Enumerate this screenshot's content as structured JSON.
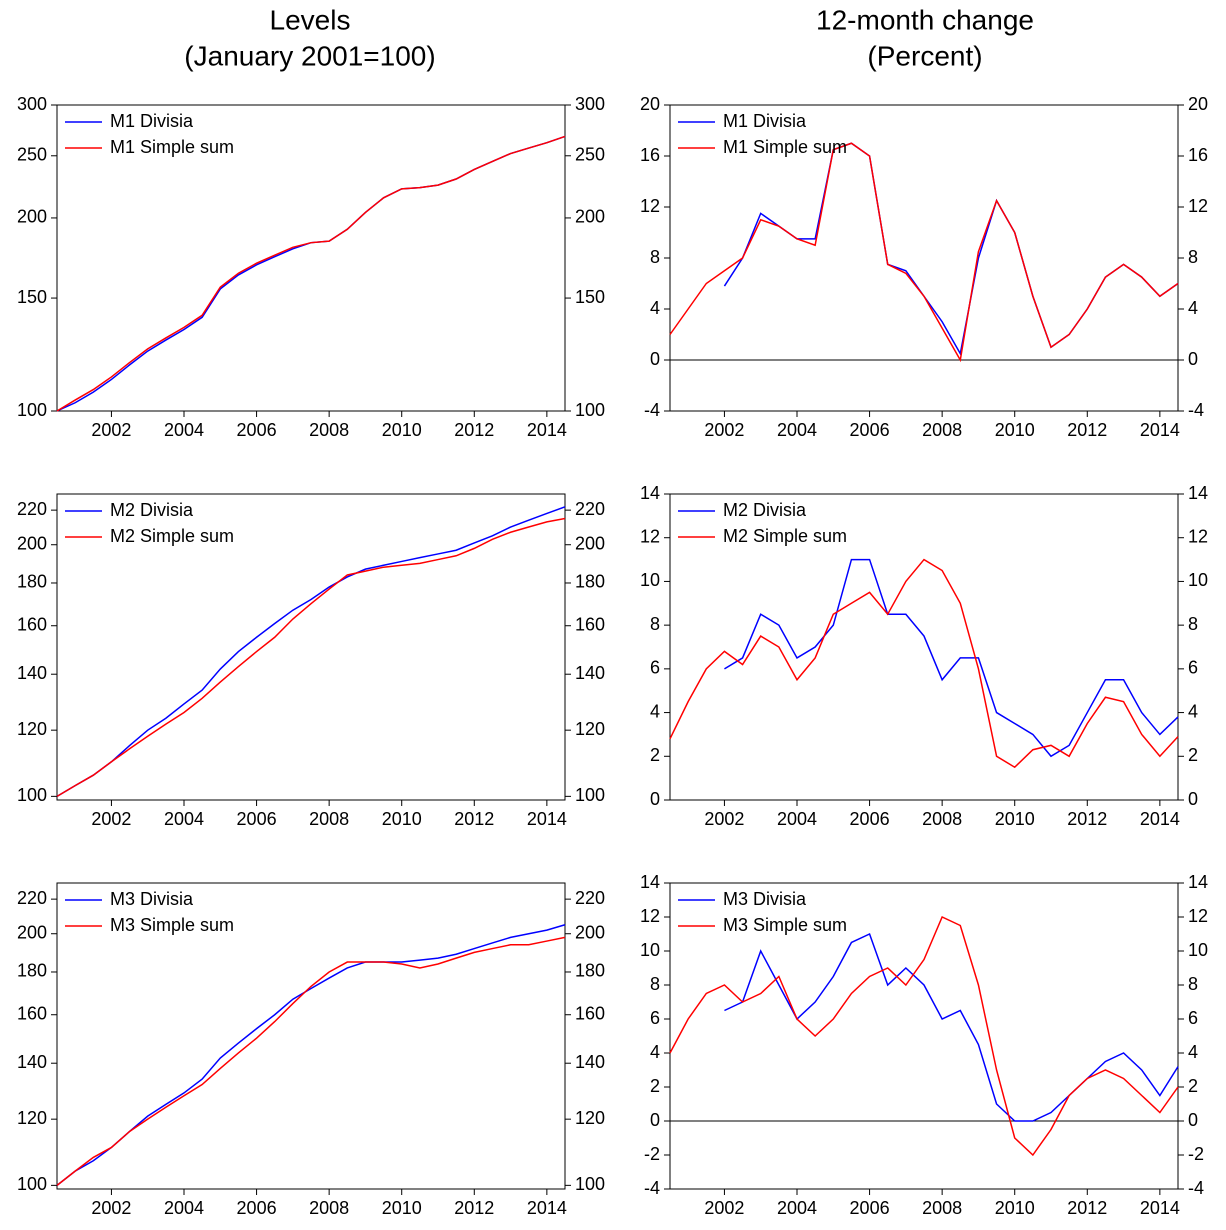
{
  "column_titles": [
    [
      "Levels",
      "(January 2001=100)"
    ],
    [
      "12-month change",
      "(Percent)"
    ]
  ],
  "chart_data": [
    {
      "type": "line",
      "yscale": "log",
      "legend": "upper left",
      "xlim": [
        2000.5,
        2014.5
      ],
      "xticks": [
        2002,
        2004,
        2006,
        2008,
        2010,
        2012,
        2014
      ],
      "ylim": [
        100,
        300
      ],
      "yticks": [
        100,
        150,
        200,
        250,
        300
      ],
      "x": [
        2000.5,
        2001,
        2001.5,
        2002,
        2002.5,
        2003,
        2003.5,
        2004,
        2004.5,
        2005,
        2005.5,
        2006,
        2006.5,
        2007,
        2007.5,
        2008,
        2008.5,
        2009,
        2009.5,
        2010,
        2010.5,
        2011,
        2011.5,
        2012,
        2012.5,
        2013,
        2013.5,
        2014,
        2014.5
      ],
      "series": [
        {
          "name": "M1 Divisia",
          "color": "#0000ff",
          "values": [
            100,
            103,
            107,
            112,
            118,
            124,
            129,
            134,
            140,
            155,
            163,
            169,
            174,
            179,
            183,
            184,
            192,
            204,
            215,
            222,
            223,
            225,
            230,
            238,
            245,
            252,
            257,
            262,
            268
          ]
        },
        {
          "name": "M1 Simple sum",
          "color": "#ff0000",
          "values": [
            100,
            104,
            108,
            113,
            119,
            125,
            130,
            135,
            141,
            156,
            164,
            170,
            175,
            180,
            183,
            184,
            192,
            204,
            215,
            222,
            223,
            225,
            230,
            238,
            245,
            252,
            257,
            262,
            268
          ]
        }
      ]
    },
    {
      "type": "line",
      "legend": "upper left",
      "xlim": [
        2000.5,
        2014.5
      ],
      "xticks": [
        2002,
        2004,
        2006,
        2008,
        2010,
        2012,
        2014
      ],
      "ylim": [
        -4,
        20
      ],
      "yticks": [
        -4,
        0,
        4,
        8,
        12,
        16,
        20
      ],
      "x": [
        2000.5,
        2001,
        2001.5,
        2002,
        2002.5,
        2003,
        2003.5,
        2004,
        2004.5,
        2005,
        2005.5,
        2006,
        2006.5,
        2007,
        2007.5,
        2008,
        2008.5,
        2009,
        2009.5,
        2010,
        2010.5,
        2011,
        2011.5,
        2012,
        2012.5,
        2013,
        2013.5,
        2014,
        2014.5
      ],
      "series": [
        {
          "name": "M1 Divisia",
          "color": "#0000ff",
          "values": [
            null,
            null,
            null,
            5.8,
            8,
            11.5,
            10.5,
            9.5,
            9.5,
            16.5,
            17,
            16,
            7.5,
            7,
            5,
            3,
            0.5,
            8,
            12.5,
            10,
            5,
            1,
            2,
            4,
            6.5,
            7.5,
            6.5,
            5,
            6
          ]
        },
        {
          "name": "M1 Simple sum",
          "color": "#ff0000",
          "values": [
            2,
            4,
            6,
            7,
            8,
            11,
            10.5,
            9.5,
            9,
            16.5,
            17,
            16,
            7.5,
            6.8,
            5,
            2.5,
            0,
            8.5,
            12.5,
            10,
            5,
            1,
            2,
            4,
            6.5,
            7.5,
            6.5,
            5,
            6
          ]
        }
      ]
    },
    {
      "type": "line",
      "yscale": "log",
      "legend": "upper left",
      "xlim": [
        2000.5,
        2014.5
      ],
      "xticks": [
        2002,
        2004,
        2006,
        2008,
        2010,
        2012,
        2014
      ],
      "ylim": [
        99,
        230
      ],
      "yticks": [
        100,
        120,
        140,
        160,
        180,
        200,
        220
      ],
      "x": [
        2000.5,
        2001,
        2001.5,
        2002,
        2002.5,
        2003,
        2003.5,
        2004,
        2004.5,
        2005,
        2005.5,
        2006,
        2006.5,
        2007,
        2007.5,
        2008,
        2008.5,
        2009,
        2009.5,
        2010,
        2010.5,
        2011,
        2011.5,
        2012,
        2012.5,
        2013,
        2013.5,
        2014,
        2014.5
      ],
      "series": [
        {
          "name": "M2 Divisia",
          "color": "#0000ff",
          "values": [
            100,
            103,
            106,
            110,
            115,
            120,
            124,
            129,
            134,
            142,
            149,
            155,
            161,
            167,
            172,
            178,
            183,
            187,
            189,
            191,
            193,
            195,
            197,
            201,
            205,
            210,
            214,
            218,
            222
          ]
        },
        {
          "name": "M2 Simple sum",
          "color": "#ff0000",
          "values": [
            100,
            103,
            106,
            110,
            114,
            118,
            122,
            126,
            131,
            137,
            143,
            149,
            155,
            163,
            170,
            177,
            184,
            186,
            188,
            189,
            190,
            192,
            194,
            198,
            203,
            207,
            210,
            213,
            215
          ]
        }
      ]
    },
    {
      "type": "line",
      "legend": "upper left",
      "xlim": [
        2000.5,
        2014.5
      ],
      "xticks": [
        2002,
        2004,
        2006,
        2008,
        2010,
        2012,
        2014
      ],
      "ylim": [
        0,
        14
      ],
      "yticks": [
        0,
        2,
        4,
        6,
        8,
        10,
        12,
        14
      ],
      "x": [
        2000.5,
        2001,
        2001.5,
        2002,
        2002.5,
        2003,
        2003.5,
        2004,
        2004.5,
        2005,
        2005.5,
        2006,
        2006.5,
        2007,
        2007.5,
        2008,
        2008.5,
        2009,
        2009.5,
        2010,
        2010.5,
        2011,
        2011.5,
        2012,
        2012.5,
        2013,
        2013.5,
        2014,
        2014.5
      ],
      "series": [
        {
          "name": "M2 Divisia",
          "color": "#0000ff",
          "values": [
            null,
            null,
            null,
            6,
            6.5,
            8.5,
            8,
            6.5,
            7,
            8,
            11,
            11,
            8.5,
            8.5,
            7.5,
            5.5,
            6.5,
            6.5,
            4,
            3.5,
            3,
            2,
            2.5,
            4,
            5.5,
            5.5,
            4,
            3,
            3.8
          ]
        },
        {
          "name": "M2 Simple sum",
          "color": "#ff0000",
          "values": [
            2.8,
            4.5,
            6,
            6.8,
            6.2,
            7.5,
            7,
            5.5,
            6.5,
            8.5,
            9,
            9.5,
            8.5,
            10,
            11,
            10.5,
            9,
            6,
            2,
            1.5,
            2.3,
            2.5,
            2,
            3.5,
            4.7,
            4.5,
            3,
            2,
            2.9
          ]
        }
      ]
    },
    {
      "type": "line",
      "yscale": "log",
      "legend": "upper left",
      "xlim": [
        2000.5,
        2014.5
      ],
      "xticks": [
        2002,
        2004,
        2006,
        2008,
        2010,
        2012,
        2014
      ],
      "ylim": [
        99,
        230
      ],
      "yticks": [
        100,
        120,
        140,
        160,
        180,
        200,
        220
      ],
      "x": [
        2000.5,
        2001,
        2001.5,
        2002,
        2002.5,
        2003,
        2003.5,
        2004,
        2004.5,
        2005,
        2005.5,
        2006,
        2006.5,
        2007,
        2007.5,
        2008,
        2008.5,
        2009,
        2009.5,
        2010,
        2010.5,
        2011,
        2011.5,
        2012,
        2012.5,
        2013,
        2013.5,
        2014,
        2014.5
      ],
      "series": [
        {
          "name": "M3 Divisia",
          "color": "#0000ff",
          "values": [
            100,
            104,
            107,
            111,
            116,
            121,
            125,
            129,
            134,
            142,
            148,
            154,
            160,
            167,
            172,
            177,
            182,
            185,
            185,
            185,
            186,
            187,
            189,
            192,
            195,
            198,
            200,
            202,
            205
          ]
        },
        {
          "name": "M3 Simple sum",
          "color": "#ff0000",
          "values": [
            100,
            104,
            108,
            111,
            116,
            120,
            124,
            128,
            132,
            138,
            144,
            150,
            157,
            165,
            173,
            180,
            185,
            185,
            185,
            184,
            182,
            184,
            187,
            190,
            192,
            194,
            194,
            196,
            198
          ]
        }
      ]
    },
    {
      "type": "line",
      "legend": "upper left",
      "xlim": [
        2000.5,
        2014.5
      ],
      "xticks": [
        2002,
        2004,
        2006,
        2008,
        2010,
        2012,
        2014
      ],
      "ylim": [
        -4,
        14
      ],
      "yticks": [
        -4,
        -2,
        0,
        2,
        4,
        6,
        8,
        10,
        12,
        14
      ],
      "x": [
        2000.5,
        2001,
        2001.5,
        2002,
        2002.5,
        2003,
        2003.5,
        2004,
        2004.5,
        2005,
        2005.5,
        2006,
        2006.5,
        2007,
        2007.5,
        2008,
        2008.5,
        2009,
        2009.5,
        2010,
        2010.5,
        2011,
        2011.5,
        2012,
        2012.5,
        2013,
        2013.5,
        2014,
        2014.5
      ],
      "series": [
        {
          "name": "M3 Divisia",
          "color": "#0000ff",
          "values": [
            null,
            null,
            null,
            6.5,
            7,
            10,
            8,
            6,
            7,
            8.5,
            10.5,
            11,
            8,
            9,
            8,
            6,
            6.5,
            4.5,
            1,
            0,
            0,
            0.5,
            1.5,
            2.5,
            3.5,
            4,
            3,
            1.5,
            3.2
          ]
        },
        {
          "name": "M3 Simple sum",
          "color": "#ff0000",
          "values": [
            4,
            6,
            7.5,
            8,
            7,
            7.5,
            8.5,
            6,
            5,
            6,
            7.5,
            8.5,
            9,
            8,
            9.5,
            12,
            11.5,
            8,
            3,
            -1,
            -2,
            -0.5,
            1.5,
            2.5,
            3,
            2.5,
            1.5,
            0.5,
            2
          ]
        }
      ]
    }
  ]
}
